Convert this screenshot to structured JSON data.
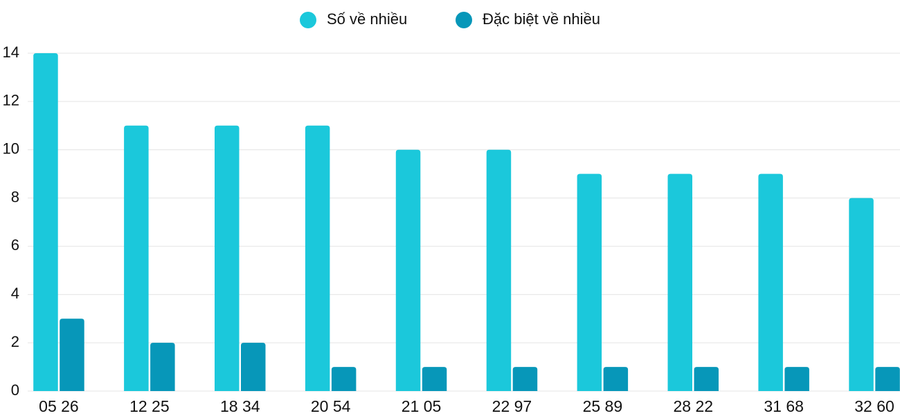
{
  "chart_data": {
    "type": "bar",
    "categories": [
      "05 26",
      "12 25",
      "18 34",
      "20 54",
      "21 05",
      "22 97",
      "25 89",
      "28 22",
      "31 68",
      "32 60"
    ],
    "series": [
      {
        "name": "Số về nhiều",
        "color": "#1bc8db",
        "values": [
          14,
          11,
          11,
          11,
          10,
          10,
          9,
          9,
          9,
          8
        ]
      },
      {
        "name": "Đặc biệt về nhiều",
        "color": "#0797b9",
        "values": [
          3,
          2,
          2,
          1,
          1,
          1,
          1,
          1,
          1,
          1
        ]
      }
    ],
    "ylim": [
      0,
      14
    ],
    "yticks": [
      0,
      2,
      4,
      6,
      8,
      10,
      12,
      14
    ],
    "grid": true,
    "legend": "top"
  }
}
